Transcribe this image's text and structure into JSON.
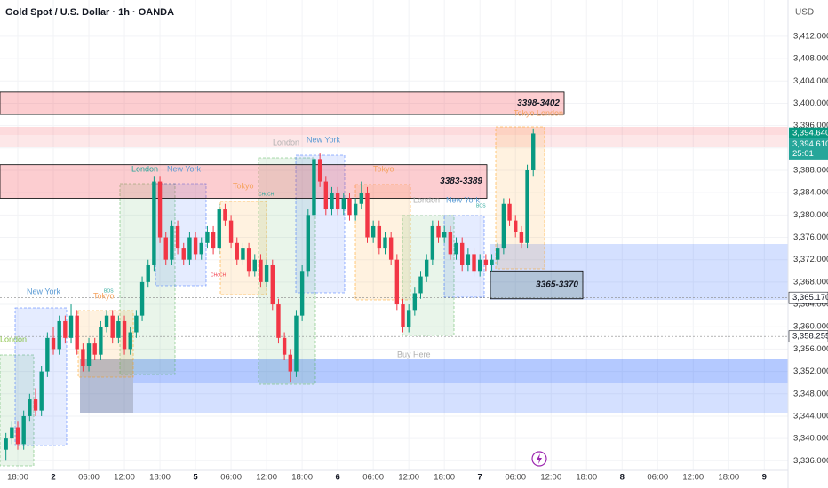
{
  "chart_data": {
    "type": "candlestick",
    "title": "Gold Spot / U.S. Dollar · 1h · OANDA",
    "currency": "USD",
    "up_color": "#089981",
    "down_color": "#f23645",
    "xlim": [
      -9,
      124
    ],
    "ylim": [
      3334.3,
      3418.5
    ],
    "xticks": [
      {
        "value": -6,
        "label": "18:00"
      },
      {
        "value": 0,
        "label": "2"
      },
      {
        "value": 6,
        "label": "06:00"
      },
      {
        "value": 12,
        "label": "12:00"
      },
      {
        "value": 18,
        "label": "18:00"
      },
      {
        "value": 24,
        "label": "5"
      },
      {
        "value": 30,
        "label": "06:00"
      },
      {
        "value": 36,
        "label": "12:00"
      },
      {
        "value": 42,
        "label": "18:00"
      },
      {
        "value": 48,
        "label": "6"
      },
      {
        "value": 54,
        "label": "06:00"
      },
      {
        "value": 60,
        "label": "12:00"
      },
      {
        "value": 66,
        "label": "18:00"
      },
      {
        "value": 72,
        "label": "7"
      },
      {
        "value": 78,
        "label": "06:00"
      },
      {
        "value": 84,
        "label": "12:00"
      },
      {
        "value": 90,
        "label": "18:00"
      },
      {
        "value": 96,
        "label": "8"
      },
      {
        "value": 102,
        "label": "06:00"
      },
      {
        "value": 108,
        "label": "12:00"
      },
      {
        "value": 114,
        "label": "18:00"
      },
      {
        "value": 120,
        "label": "9"
      }
    ],
    "yticks": [
      {
        "value": 3336,
        "label": "3,336.000"
      },
      {
        "value": 3340,
        "label": "3,340.000"
      },
      {
        "value": 3344,
        "label": "3,344.000"
      },
      {
        "value": 3348,
        "label": "3,348.000"
      },
      {
        "value": 3352,
        "label": "3,352.000"
      },
      {
        "value": 3356,
        "label": "3,356.000"
      },
      {
        "value": 3360,
        "label": "3,360.000"
      },
      {
        "value": 3364,
        "label": "3,364.000"
      },
      {
        "value": 3368,
        "label": "3,368.000"
      },
      {
        "value": 3372,
        "label": "3,372.000"
      },
      {
        "value": 3376,
        "label": "3,376.000"
      },
      {
        "value": 3380,
        "label": "3,380.000"
      },
      {
        "value": 3384,
        "label": "3,384.000"
      },
      {
        "value": 3388,
        "label": "3,388.000"
      },
      {
        "value": 3392,
        "label": "3,392.000"
      },
      {
        "value": 3396,
        "label": "3,396.000"
      },
      {
        "value": 3400,
        "label": "3,400.000"
      },
      {
        "value": 3404,
        "label": "3,404.000"
      },
      {
        "value": 3408,
        "label": "3,408.000"
      },
      {
        "value": 3412,
        "label": "3,412.000"
      }
    ],
    "x": [
      -8,
      -7,
      -6,
      -5,
      -4,
      -3,
      -2,
      -1,
      0,
      1,
      2,
      3,
      4,
      5,
      6,
      7,
      8,
      9,
      10,
      11,
      12,
      13,
      14,
      15,
      16,
      17,
      18,
      19,
      20,
      21,
      22,
      23,
      24,
      25,
      26,
      27,
      28,
      29,
      30,
      31,
      32,
      33,
      34,
      35,
      36,
      37,
      38,
      39,
      40,
      41,
      42,
      43,
      44,
      45,
      46,
      47,
      48,
      49,
      50,
      51,
      52,
      53,
      54,
      55,
      56,
      57,
      58,
      59,
      60,
      61,
      62,
      63,
      64,
      65,
      66,
      67,
      68,
      69,
      70,
      71,
      72,
      73,
      74,
      75,
      76,
      77,
      78,
      79,
      80,
      81
    ],
    "ohlc": [
      [
        3338,
        3341,
        3336,
        3340
      ],
      [
        3340,
        3343,
        3339,
        3342
      ],
      [
        3342,
        3343,
        3338,
        3339
      ],
      [
        3339,
        3345,
        3338,
        3344
      ],
      [
        3344,
        3348,
        3343,
        3347
      ],
      [
        3347,
        3349,
        3344,
        3345
      ],
      [
        3345,
        3353,
        3344,
        3352
      ],
      [
        3352,
        3359,
        3351,
        3358
      ],
      [
        3358,
        3360,
        3355,
        3356
      ],
      [
        3356,
        3362,
        3355,
        3361
      ],
      [
        3361,
        3362,
        3357,
        3358
      ],
      [
        3358,
        3364,
        3357,
        3362
      ],
      [
        3362,
        3363,
        3355,
        3356
      ],
      [
        3356,
        3357,
        3352,
        3353
      ],
      [
        3353,
        3358,
        3352,
        3357
      ],
      [
        3357,
        3358,
        3354,
        3355
      ],
      [
        3355,
        3361,
        3354,
        3360
      ],
      [
        3360,
        3363,
        3359,
        3362
      ],
      [
        3362,
        3363,
        3357,
        3358
      ],
      [
        3358,
        3362,
        3357,
        3361
      ],
      [
        3361,
        3362,
        3355,
        3356
      ],
      [
        3356,
        3360,
        3355,
        3359
      ],
      [
        3359,
        3363,
        3358,
        3362
      ],
      [
        3362,
        3369,
        3361,
        3368
      ],
      [
        3368,
        3372,
        3367,
        3371
      ],
      [
        3371,
        3387,
        3370,
        3386
      ],
      [
        3386,
        3387,
        3375,
        3376
      ],
      [
        3376,
        3377,
        3371,
        3372
      ],
      [
        3372,
        3379,
        3371,
        3378
      ],
      [
        3378,
        3379,
        3373,
        3374
      ],
      [
        3374,
        3375,
        3371,
        3372
      ],
      [
        3372,
        3377,
        3371,
        3376
      ],
      [
        3376,
        3377,
        3372,
        3373
      ],
      [
        3373,
        3376,
        3372,
        3375
      ],
      [
        3375,
        3378,
        3374,
        3377
      ],
      [
        3377,
        3378,
        3373,
        3374
      ],
      [
        3374,
        3382,
        3373,
        3381
      ],
      [
        3381,
        3382,
        3378,
        3379
      ],
      [
        3379,
        3380,
        3374,
        3375
      ],
      [
        3375,
        3376,
        3371,
        3372
      ],
      [
        3372,
        3375,
        3371,
        3374
      ],
      [
        3374,
        3375,
        3369,
        3370
      ],
      [
        3370,
        3373,
        3369,
        3372
      ],
      [
        3372,
        3373,
        3367,
        3368
      ],
      [
        3368,
        3372,
        3367,
        3371
      ],
      [
        3371,
        3372,
        3363,
        3364
      ],
      [
        3364,
        3365,
        3357,
        3358
      ],
      [
        3358,
        3359,
        3354,
        3355
      ],
      [
        3355,
        3356,
        3350,
        3352
      ],
      [
        3352,
        3363,
        3351,
        3362
      ],
      [
        3362,
        3371,
        3361,
        3370
      ],
      [
        3370,
        3381,
        3369,
        3380
      ],
      [
        3380,
        3391,
        3379,
        3390
      ],
      [
        3390,
        3391,
        3385,
        3386
      ],
      [
        3386,
        3387,
        3380,
        3381
      ],
      [
        3381,
        3385,
        3380,
        3384
      ],
      [
        3384,
        3385,
        3380,
        3381
      ],
      [
        3381,
        3384,
        3380,
        3383
      ],
      [
        3383,
        3384,
        3379,
        3380
      ],
      [
        3380,
        3383,
        3379,
        3382
      ],
      [
        3382,
        3386,
        3381,
        3384
      ],
      [
        3384,
        3385,
        3375,
        3376
      ],
      [
        3376,
        3379,
        3375,
        3378
      ],
      [
        3378,
        3379,
        3373,
        3374
      ],
      [
        3374,
        3377,
        3373,
        3376
      ],
      [
        3376,
        3377,
        3371,
        3372
      ],
      [
        3372,
        3373,
        3363,
        3364
      ],
      [
        3364,
        3365,
        3359,
        3360
      ],
      [
        3360,
        3364,
        3359,
        3363
      ],
      [
        3363,
        3367,
        3362,
        3366
      ],
      [
        3366,
        3370,
        3365,
        3369
      ],
      [
        3369,
        3373,
        3368,
        3372
      ],
      [
        3372,
        3379,
        3371,
        3378
      ],
      [
        3378,
        3379,
        3375,
        3376
      ],
      [
        3376,
        3378,
        3375,
        3377
      ],
      [
        3377,
        3378,
        3372,
        3373
      ],
      [
        3373,
        3376,
        3372,
        3375
      ],
      [
        3375,
        3376,
        3370,
        3371
      ],
      [
        3371,
        3374,
        3370,
        3373
      ],
      [
        3373,
        3374,
        3369,
        3370
      ],
      [
        3370,
        3373,
        3369,
        3372
      ],
      [
        3372,
        3373,
        3370,
        3371
      ],
      [
        3371,
        3373,
        3370,
        3372
      ],
      [
        3372,
        3375,
        3371,
        3374
      ],
      [
        3374,
        3383,
        3373,
        3382
      ],
      [
        3382,
        3383,
        3378,
        3379
      ],
      [
        3379,
        3380,
        3376,
        3377
      ],
      [
        3377,
        3378,
        3374,
        3375
      ],
      [
        3375,
        3389,
        3374,
        3388
      ],
      [
        3388,
        3395.5,
        3387,
        3394.6
      ]
    ],
    "zones": [
      {
        "label": "3398-3402",
        "low": 3398,
        "high": 3402
      },
      {
        "label": "3383-3389",
        "low": 3383,
        "high": 3389
      },
      {
        "label": "3365-3370",
        "low": 3365,
        "high": 3370
      }
    ],
    "price_tags": [
      {
        "value": 3394.64,
        "label": "3,394.640"
      },
      {
        "value": 3394.61,
        "label": "3,394.610"
      },
      {
        "value": 3365.17,
        "label": "3,365.170"
      },
      {
        "value": 3358.255,
        "label": "3,358.255"
      }
    ],
    "countdown": "25:01",
    "annotations": [
      "London",
      "New York",
      "Tokyo",
      "London",
      "New York",
      "Tokyo",
      "London",
      "New York",
      "Tokyo",
      "London",
      "New York",
      "Tokyo London",
      "BOS",
      "CHoCH",
      "CHoCH",
      "BOS",
      "Buy Here"
    ]
  }
}
